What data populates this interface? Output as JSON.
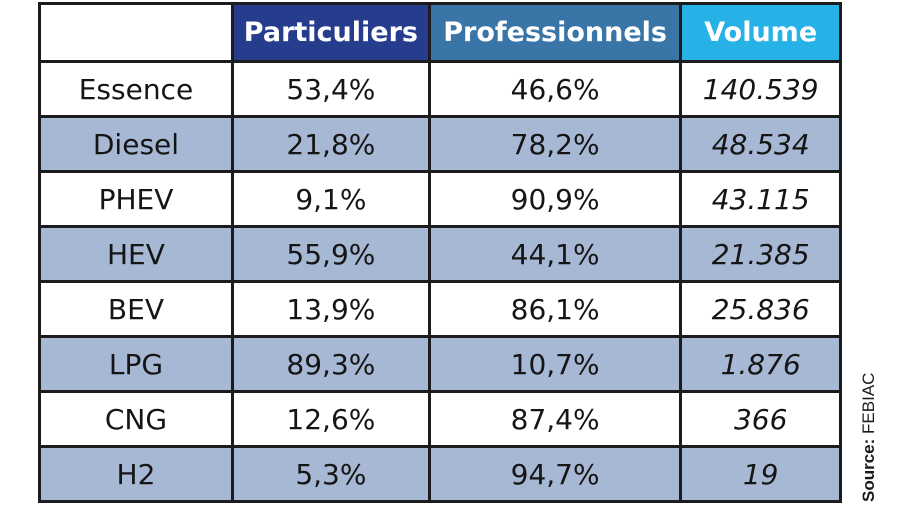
{
  "chart_data": {
    "type": "table",
    "columns": [
      "",
      "Particuliers",
      "Professionnels",
      "Volume"
    ],
    "header_colors": [
      "#ffffff",
      "#263c8c",
      "#3a75a7",
      "#26b2e6"
    ],
    "alt_row_color": "#a7b8d4",
    "rows": [
      {
        "fuel": "Essence",
        "particuliers": "53,4%",
        "professionnels": "46,6%",
        "volume": "140.539"
      },
      {
        "fuel": "Diesel",
        "particuliers": "21,8%",
        "professionnels": "78,2%",
        "volume": "48.534"
      },
      {
        "fuel": "PHEV",
        "particuliers": "9,1%",
        "professionnels": "90,9%",
        "volume": "43.115"
      },
      {
        "fuel": "HEV",
        "particuliers": "55,9%",
        "professionnels": "44,1%",
        "volume": "21.385"
      },
      {
        "fuel": "BEV",
        "particuliers": "13,9%",
        "professionnels": "86,1%",
        "volume": "25.836"
      },
      {
        "fuel": "LPG",
        "particuliers": "89,3%",
        "professionnels": "10,7%",
        "volume": "1.876"
      },
      {
        "fuel": "CNG",
        "particuliers": "12,6%",
        "professionnels": "87,4%",
        "volume": "366"
      },
      {
        "fuel": "H2",
        "particuliers": "5,3%",
        "professionnels": "94,7%",
        "volume": "19"
      }
    ]
  },
  "source": {
    "label": "Source:",
    "value": "FEBIAC"
  }
}
